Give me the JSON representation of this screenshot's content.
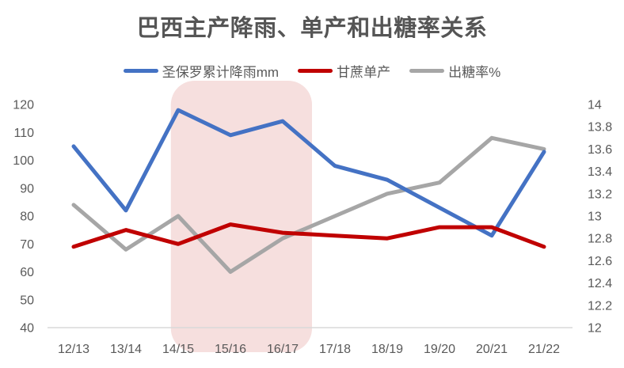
{
  "title": "巴西主产降雨、单产和出糖率关系",
  "legend": {
    "items": [
      {
        "label": "圣保罗累计降雨mm",
        "color": "#4472C4"
      },
      {
        "label": "甘蔗单产",
        "color": "#C00000"
      },
      {
        "label": "出糖率%",
        "color": "#A6A6A6"
      }
    ]
  },
  "chart_data": {
    "type": "line",
    "title": "巴西主产降雨、单产和出糖率关系",
    "categories": [
      "12/13",
      "13/14",
      "14/15",
      "15/16",
      "16/17",
      "17/18",
      "18/19",
      "19/20",
      "20/21",
      "21/22"
    ],
    "series": [
      {
        "name": "圣保罗累计降雨mm",
        "axis": "left",
        "color": "#4472C4",
        "values": [
          105,
          82,
          118,
          109,
          114,
          98,
          93,
          83,
          73,
          103
        ]
      },
      {
        "name": "甘蔗单产",
        "axis": "left",
        "color": "#C00000",
        "values": [
          69,
          75,
          70,
          77,
          74,
          73,
          72,
          76,
          76,
          69
        ]
      },
      {
        "name": "出糖率%",
        "axis": "right",
        "color": "#A6A6A6",
        "values": [
          13.1,
          12.7,
          13.0,
          12.5,
          12.8,
          13.0,
          13.2,
          13.3,
          13.7,
          13.6
        ]
      }
    ],
    "left_axis": {
      "min": 40,
      "max": 120,
      "step": 10,
      "ticks": [
        "120",
        "110",
        "100",
        "90",
        "80",
        "70",
        "60",
        "50",
        "40"
      ]
    },
    "right_axis": {
      "min": 12,
      "max": 14,
      "step": 0.2,
      "ticks": [
        "14",
        "13.8",
        "13.6",
        "13.4",
        "13.2",
        "13",
        "12.8",
        "12.6",
        "12.4",
        "12.2",
        "12"
      ]
    },
    "highlight_band": {
      "from_category": "14/15",
      "to_category": "16/17",
      "start_index": 1.86,
      "end_index": 4.56,
      "color": "#F6DFDE"
    },
    "grid": "off",
    "legend_position": "top",
    "z_order": [
      "出糖率%",
      "圣保罗累计降雨mm",
      "甘蔗单产"
    ]
  },
  "colors": {
    "title_text": "#555555",
    "axis_labels": "#595959",
    "axis_line": "#D9D9D9",
    "background": "#FFFFFF"
  }
}
